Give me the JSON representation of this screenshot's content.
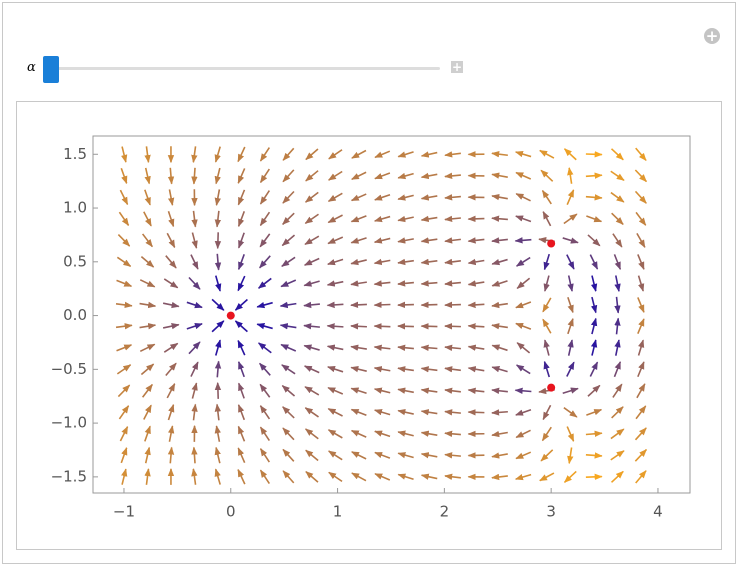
{
  "slider": {
    "label": "α"
  },
  "chart_data": {
    "type": "stream",
    "xlim": [
      -1.29,
      4.3
    ],
    "ylim": [
      -1.65,
      1.67
    ],
    "xticks": [
      {
        "value": -1,
        "label": "−1"
      },
      0,
      1,
      2,
      3,
      4
    ],
    "yticks": [
      {
        "value": -1.5,
        "label": "−1.5"
      },
      {
        "value": -1,
        "label": "−1.0"
      },
      {
        "value": -0.5,
        "label": "−0.5"
      },
      {
        "value": 0,
        "label": "0.0"
      },
      0.5,
      {
        "value": 1,
        "label": "1.0"
      },
      1.5
    ],
    "points": {
      "color": "#e8141e",
      "x": [
        0,
        3,
        3
      ],
      "y": [
        0,
        0.67,
        -0.67
      ]
    }
  }
}
